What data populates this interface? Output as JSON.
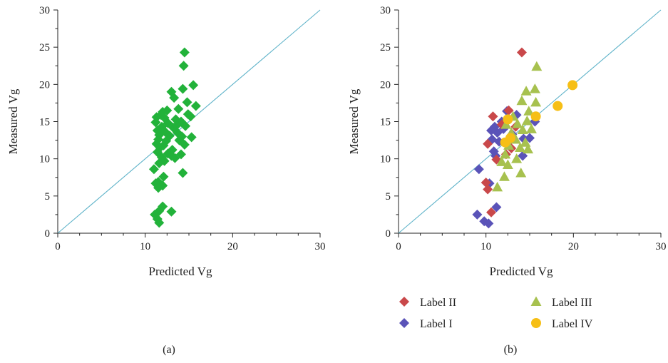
{
  "chart_data": [
    {
      "type": "scatter",
      "panel_label": "(a)",
      "xlabel": "Predicted Vg",
      "ylabel": "Measured Vg",
      "xlim": [
        0,
        30
      ],
      "ylim": [
        0,
        30
      ],
      "x_ticks": [
        0,
        10,
        20,
        30
      ],
      "y_ticks": [
        0,
        5,
        10,
        15,
        20,
        25,
        30
      ],
      "reference_line": {
        "from": [
          0,
          0
        ],
        "to": [
          30,
          30
        ],
        "color": "#5fb3c9"
      },
      "grid": false,
      "series": [
        {
          "marker": "diamond",
          "color": "#22b23a",
          "points": [
            [
              14.5,
              24.3
            ],
            [
              14.4,
              22.5
            ],
            [
              15.5,
              19.9
            ],
            [
              14.3,
              19.4
            ],
            [
              13.0,
              19.0
            ],
            [
              13.3,
              18.2
            ],
            [
              15.8,
              17.1
            ],
            [
              14.8,
              17.6
            ],
            [
              12.0,
              16.3
            ],
            [
              12.5,
              16.5
            ],
            [
              13.8,
              16.7
            ],
            [
              11.8,
              15.9
            ],
            [
              11.3,
              15.6
            ],
            [
              14.9,
              16.0
            ],
            [
              12.2,
              15.5
            ],
            [
              13.5,
              15.3
            ],
            [
              15.2,
              15.7
            ],
            [
              11.2,
              14.9
            ],
            [
              12.6,
              14.8
            ],
            [
              14.1,
              15.0
            ],
            [
              11.9,
              14.3
            ],
            [
              13.2,
              14.2
            ],
            [
              14.6,
              14.4
            ],
            [
              11.4,
              13.8
            ],
            [
              12.3,
              13.6
            ],
            [
              13.7,
              13.5
            ],
            [
              11.6,
              13.2
            ],
            [
              12.8,
              13.1
            ],
            [
              14.2,
              13.0
            ],
            [
              15.3,
              12.9
            ],
            [
              11.5,
              12.6
            ],
            [
              12.4,
              12.4
            ],
            [
              13.9,
              12.5
            ],
            [
              11.3,
              12.0
            ],
            [
              12.1,
              11.8
            ],
            [
              14.5,
              11.9
            ],
            [
              11.7,
              11.5
            ],
            [
              13.1,
              11.2
            ],
            [
              11.4,
              10.9
            ],
            [
              12.6,
              10.7
            ],
            [
              14.1,
              10.6
            ],
            [
              11.9,
              10.2
            ],
            [
              13.4,
              10.1
            ],
            [
              12.2,
              9.7
            ],
            [
              11.6,
              9.4
            ],
            [
              13.0,
              10.4
            ],
            [
              11.0,
              8.6
            ],
            [
              14.3,
              8.1
            ],
            [
              12.1,
              7.6
            ],
            [
              11.5,
              6.9
            ],
            [
              11.2,
              6.7
            ],
            [
              12.0,
              6.4
            ],
            [
              11.5,
              6.1
            ],
            [
              12.0,
              3.6
            ],
            [
              13.0,
              2.9
            ],
            [
              11.6,
              3.0
            ],
            [
              11.1,
              2.5
            ],
            [
              11.4,
              1.9
            ],
            [
              11.6,
              1.4
            ],
            [
              13.6,
              14.5
            ]
          ]
        }
      ]
    },
    {
      "type": "scatter",
      "panel_label": "(b)",
      "xlabel": "Predicted Vg",
      "ylabel": "Measured Vg",
      "xlim": [
        0,
        30
      ],
      "ylim": [
        0,
        30
      ],
      "x_ticks": [
        0,
        10,
        20,
        30
      ],
      "y_ticks": [
        0,
        5,
        10,
        15,
        20,
        25,
        30
      ],
      "reference_line": {
        "from": [
          0,
          0
        ],
        "to": [
          30,
          30
        ],
        "color": "#5fb3c9"
      },
      "grid": false,
      "legend_placement": "bottom",
      "series": [
        {
          "name": "Label I",
          "marker": "diamond",
          "color": "#5a53b8",
          "points": [
            [
              9.0,
              2.5
            ],
            [
              9.8,
              1.6
            ],
            [
              10.3,
              1.3
            ],
            [
              11.2,
              3.5
            ],
            [
              9.2,
              8.6
            ],
            [
              10.4,
              6.7
            ],
            [
              10.7,
              12.6
            ],
            [
              10.9,
              11.0
            ],
            [
              11.3,
              13.5
            ],
            [
              11.0,
              14.3
            ],
            [
              11.5,
              12.3
            ],
            [
              11.8,
              15.0
            ],
            [
              12.4,
              16.4
            ],
            [
              12.0,
              14.0
            ],
            [
              13.0,
              13.3
            ],
            [
              13.5,
              15.9
            ],
            [
              14.3,
              12.7
            ],
            [
              15.0,
              12.8
            ],
            [
              15.6,
              15.0
            ],
            [
              14.2,
              10.4
            ],
            [
              10.6,
              13.8
            ],
            [
              11.1,
              10.4
            ]
          ]
        },
        {
          "name": "Label II",
          "marker": "diamond",
          "color": "#c9484a",
          "points": [
            [
              14.1,
              24.3
            ],
            [
              10.8,
              15.7
            ],
            [
              10.2,
              12.0
            ],
            [
              10.0,
              6.8
            ],
            [
              10.2,
              5.9
            ],
            [
              10.6,
              2.8
            ],
            [
              12.6,
              16.5
            ],
            [
              12.3,
              10.6
            ],
            [
              11.8,
              14.6
            ],
            [
              13.4,
              14.3
            ],
            [
              11.2,
              9.9
            ],
            [
              12.9,
              11.4
            ]
          ]
        },
        {
          "name": "Label III",
          "marker": "triangle",
          "color": "#a7c14f",
          "points": [
            [
              15.8,
              22.4
            ],
            [
              15.6,
              19.4
            ],
            [
              14.6,
              19.1
            ],
            [
              14.1,
              17.8
            ],
            [
              15.7,
              17.6
            ],
            [
              13.1,
              15.7
            ],
            [
              14.9,
              16.4
            ],
            [
              12.3,
              14.6
            ],
            [
              13.6,
              14.7
            ],
            [
              14.7,
              15.1
            ],
            [
              12.9,
              13.5
            ],
            [
              14.2,
              13.9
            ],
            [
              13.4,
              12.6
            ],
            [
              14.5,
              12.2
            ],
            [
              12.6,
              11.8
            ],
            [
              13.9,
              11.5
            ],
            [
              14.8,
              11.3
            ],
            [
              12.2,
              10.6
            ],
            [
              13.5,
              10.0
            ],
            [
              11.8,
              9.6
            ],
            [
              12.5,
              9.2
            ],
            [
              14.0,
              8.1
            ],
            [
              12.1,
              7.6
            ],
            [
              11.3,
              6.2
            ],
            [
              15.2,
              14.0
            ]
          ]
        },
        {
          "name": "Label IV",
          "marker": "circle",
          "color": "#f6bf16",
          "points": [
            [
              19.9,
              19.9
            ],
            [
              18.2,
              17.1
            ],
            [
              15.7,
              15.7
            ],
            [
              12.5,
              15.3
            ],
            [
              12.2,
              12.2
            ],
            [
              12.8,
              12.8
            ]
          ]
        }
      ],
      "legend": {
        "entries": [
          {
            "label": "Label II",
            "series": "Label II"
          },
          {
            "label": "Label I",
            "series": "Label I"
          },
          {
            "label": "Label III",
            "series": "Label III"
          },
          {
            "label": "Label IV",
            "series": "Label IV"
          }
        ]
      }
    }
  ]
}
